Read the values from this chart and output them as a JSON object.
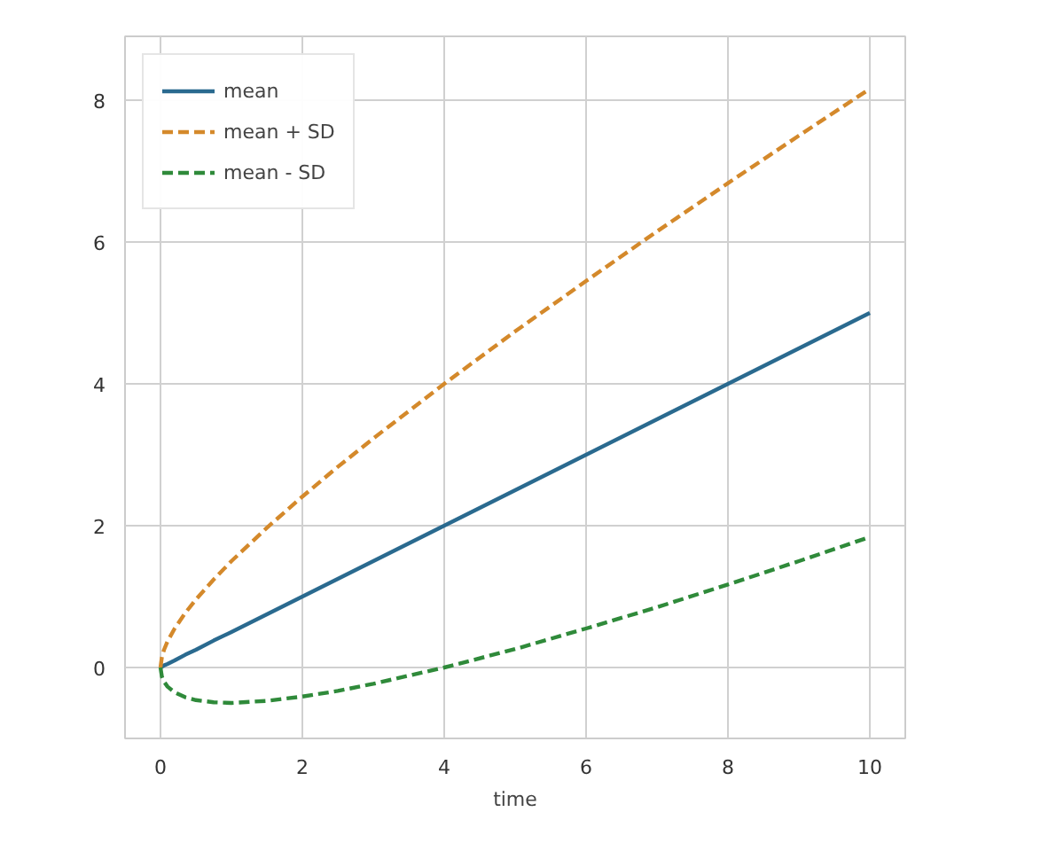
{
  "chart_data": {
    "type": "line",
    "xlabel": "time",
    "x": [
      0,
      0.02,
      0.05,
      0.1,
      0.2,
      0.35,
      0.5,
      0.75,
      1,
      1.5,
      2,
      2.5,
      3,
      4,
      5,
      6,
      7,
      8,
      9,
      10
    ],
    "series": [
      {
        "name": "mean",
        "color": "#2a6a8f",
        "line_style": "solid",
        "values": [
          0,
          0.01,
          0.03,
          0.05,
          0.1,
          0.18,
          0.25,
          0.38,
          0.5,
          0.75,
          1,
          1.25,
          1.5,
          2,
          2.5,
          3,
          3.5,
          4,
          4.5,
          5
        ]
      },
      {
        "name": "mean + SD",
        "color": "#d4892b",
        "line_style": "dashed",
        "values": [
          0,
          0.15,
          0.25,
          0.37,
          0.55,
          0.77,
          0.96,
          1.24,
          1.5,
          1.97,
          2.41,
          2.83,
          3.23,
          4.0,
          4.74,
          5.45,
          6.15,
          6.83,
          7.5,
          8.16
        ]
      },
      {
        "name": "mean - SD",
        "color": "#2f8a3a",
        "line_style": "dashed",
        "values": [
          0,
          -0.13,
          -0.2,
          -0.27,
          -0.35,
          -0.42,
          -0.46,
          -0.49,
          -0.5,
          -0.47,
          -0.41,
          -0.33,
          -0.23,
          0,
          0.26,
          0.55,
          0.85,
          1.17,
          1.5,
          1.84
        ]
      }
    ],
    "xlim": [
      -0.5,
      10.5
    ],
    "ylim": [
      -1,
      8.9
    ],
    "xticks": [
      0,
      2,
      4,
      6,
      8,
      10
    ],
    "yticks": [
      0,
      2,
      4,
      6,
      8
    ],
    "grid": true,
    "legend": "top left",
    "marker": "none"
  }
}
